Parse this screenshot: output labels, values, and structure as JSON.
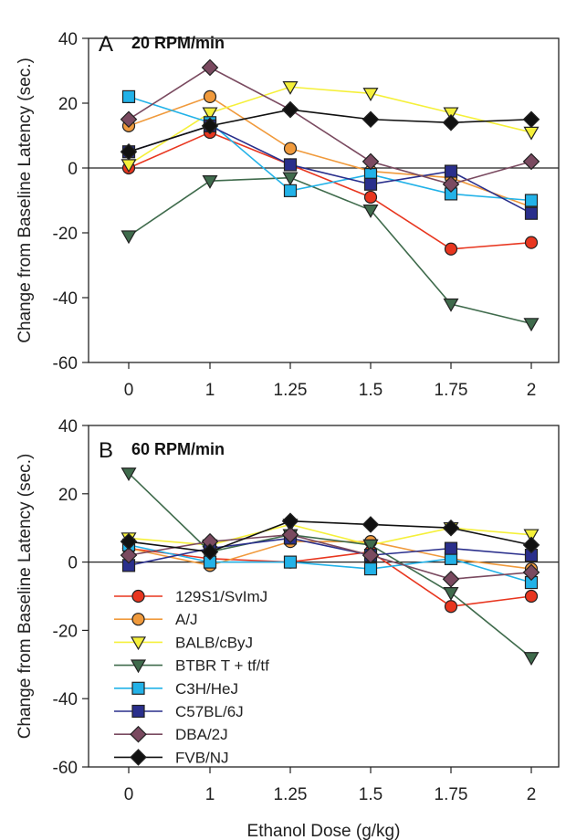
{
  "chart_data": [
    {
      "type": "line",
      "panel": "A",
      "title": "20 RPM/min",
      "xlabel": "",
      "ylabel": "Change from Baseline Latency (sec.)",
      "categories": [
        "0",
        "1",
        "1.25",
        "1.5",
        "1.75",
        "2"
      ],
      "ylim": [
        -60,
        40
      ],
      "yticks": [
        40,
        20,
        0,
        -20,
        -40,
        -60
      ],
      "reference_line": 0,
      "series": [
        {
          "name": "129S1/SvImJ",
          "color": "#e8361f",
          "marker": "circle",
          "values": [
            0,
            11,
            1,
            -9,
            -25,
            -23
          ]
        },
        {
          "name": "A/J",
          "color": "#f09a3c",
          "marker": "circle",
          "values": [
            13,
            22,
            6,
            -1,
            -3,
            -12
          ]
        },
        {
          "name": "BALB/cByJ",
          "color": "#f5f03a",
          "marker": "triangle-down",
          "values": [
            1,
            17,
            25,
            23,
            17,
            11
          ]
        },
        {
          "name": "BTBR T + tf/tf",
          "color": "#3f6b4c",
          "marker": "triangle-down",
          "values": [
            -21,
            -4,
            -3,
            -13,
            -42,
            -48
          ]
        },
        {
          "name": "C3H/HeJ",
          "color": "#22b2e8",
          "marker": "square",
          "values": [
            22,
            14,
            -7,
            -2,
            -8,
            -10
          ]
        },
        {
          "name": "C57BL/6J",
          "color": "#2a2f8c",
          "marker": "square",
          "values": [
            5,
            13,
            1,
            -5,
            -1,
            -14
          ]
        },
        {
          "name": "DBA/2J",
          "color": "#7a4a60",
          "marker": "diamond",
          "values": [
            15,
            31,
            18,
            2,
            -5,
            2
          ]
        },
        {
          "name": "FVB/NJ",
          "color": "#111111",
          "marker": "diamond",
          "values": [
            5,
            13,
            18,
            15,
            14,
            15
          ]
        }
      ]
    },
    {
      "type": "line",
      "panel": "B",
      "title": "60 RPM/min",
      "xlabel": "Ethanol Dose (g/kg)",
      "ylabel": "Change from Baseline Latency (sec.)",
      "categories": [
        "0",
        "1",
        "1.25",
        "1.5",
        "1.75",
        "2"
      ],
      "ylim": [
        -60,
        40
      ],
      "yticks": [
        40,
        20,
        0,
        -20,
        -40,
        -60
      ],
      "reference_line": 0,
      "legend": "lower-left",
      "series": [
        {
          "name": "129S1/SvImJ",
          "color": "#e8361f",
          "marker": "circle",
          "values": [
            4,
            1,
            0,
            3,
            -13,
            -10
          ]
        },
        {
          "name": "A/J",
          "color": "#f09a3c",
          "marker": "circle",
          "values": [
            4,
            -1,
            6,
            6,
            1,
            -2
          ]
        },
        {
          "name": "BALB/cByJ",
          "color": "#f5f03a",
          "marker": "triangle-down",
          "values": [
            7,
            5,
            11,
            5,
            10,
            8
          ]
        },
        {
          "name": "BTBR T + tf/tf",
          "color": "#3f6b4c",
          "marker": "triangle-down",
          "values": [
            26,
            3,
            8,
            5,
            -9,
            -28
          ]
        },
        {
          "name": "C3H/HeJ",
          "color": "#22b2e8",
          "marker": "square",
          "values": [
            5,
            0,
            0,
            -2,
            1,
            -6
          ]
        },
        {
          "name": "C57BL/6J",
          "color": "#2a2f8c",
          "marker": "square",
          "values": [
            -1,
            4,
            7,
            2,
            4,
            2
          ]
        },
        {
          "name": "DBA/2J",
          "color": "#7a4a60",
          "marker": "diamond",
          "values": [
            2,
            6,
            8,
            2,
            -5,
            -3
          ]
        },
        {
          "name": "FVB/NJ",
          "color": "#111111",
          "marker": "diamond",
          "values": [
            6,
            3,
            12,
            11,
            10,
            5
          ]
        }
      ]
    }
  ]
}
